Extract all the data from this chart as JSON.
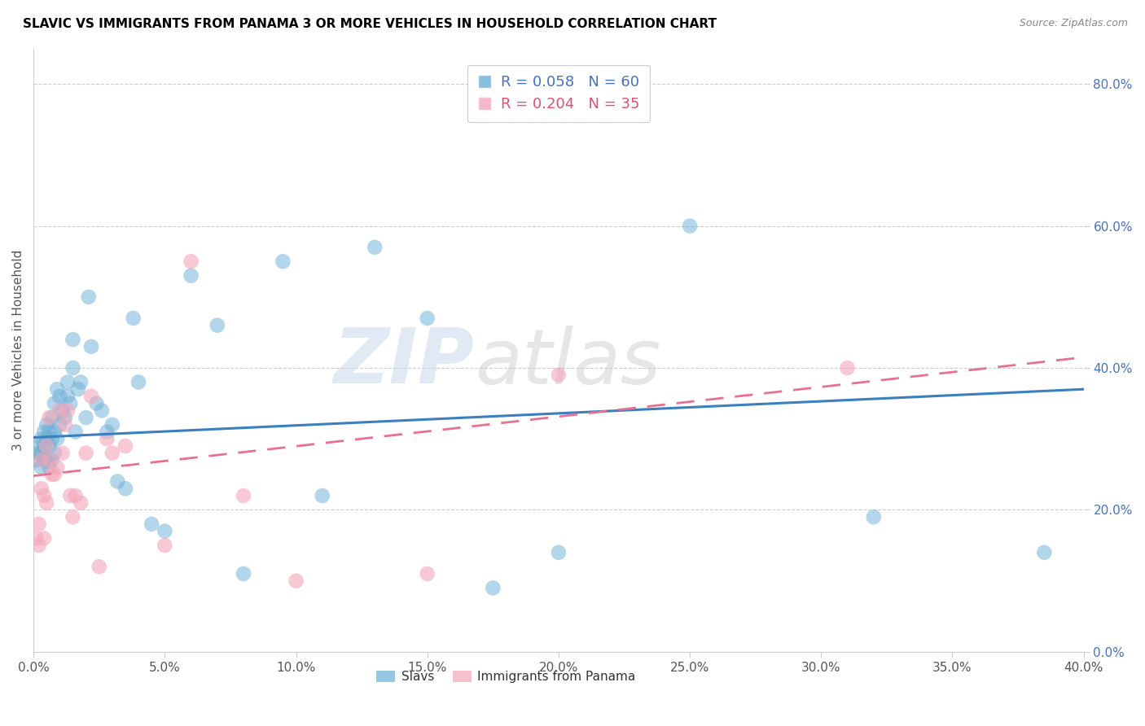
{
  "title": "SLAVIC VS IMMIGRANTS FROM PANAMA 3 OR MORE VEHICLES IN HOUSEHOLD CORRELATION CHART",
  "source": "Source: ZipAtlas.com",
  "ylabel": "3 or more Vehicles in Household",
  "xlim": [
    0.0,
    0.4
  ],
  "ylim": [
    0.0,
    0.85
  ],
  "xticks": [
    0.0,
    0.05,
    0.1,
    0.15,
    0.2,
    0.25,
    0.3,
    0.35,
    0.4
  ],
  "yticks": [
    0.0,
    0.2,
    0.4,
    0.6,
    0.8
  ],
  "ytick_labels_right": [
    "0.0%",
    "20.0%",
    "40.0%",
    "60.0%",
    "80.0%"
  ],
  "xtick_labels": [
    "0.0%",
    "5.0%",
    "10.0%",
    "15.0%",
    "20.0%",
    "25.0%",
    "30.0%",
    "35.0%",
    "40.0%"
  ],
  "legend1_label": "Slavs",
  "legend2_label": "Immigrants from Panama",
  "R_slavs": 0.058,
  "N_slavs": 60,
  "R_panama": 0.204,
  "N_panama": 35,
  "color_slavs": "#6baed6",
  "color_panama": "#f4a6b8",
  "watermark_zip": "ZIP",
  "watermark_atlas": "atlas",
  "slavs_x": [
    0.001,
    0.002,
    0.002,
    0.003,
    0.003,
    0.003,
    0.004,
    0.004,
    0.004,
    0.005,
    0.005,
    0.005,
    0.006,
    0.006,
    0.006,
    0.007,
    0.007,
    0.007,
    0.008,
    0.008,
    0.008,
    0.009,
    0.009,
    0.01,
    0.01,
    0.011,
    0.012,
    0.013,
    0.013,
    0.014,
    0.015,
    0.015,
    0.016,
    0.017,
    0.018,
    0.02,
    0.021,
    0.022,
    0.024,
    0.026,
    0.028,
    0.03,
    0.032,
    0.035,
    0.038,
    0.04,
    0.045,
    0.05,
    0.06,
    0.07,
    0.08,
    0.095,
    0.11,
    0.13,
    0.15,
    0.175,
    0.2,
    0.25,
    0.32,
    0.385
  ],
  "slavs_y": [
    0.27,
    0.28,
    0.29,
    0.26,
    0.28,
    0.3,
    0.27,
    0.29,
    0.31,
    0.27,
    0.3,
    0.32,
    0.26,
    0.29,
    0.31,
    0.27,
    0.3,
    0.33,
    0.28,
    0.31,
    0.35,
    0.3,
    0.37,
    0.32,
    0.36,
    0.34,
    0.33,
    0.36,
    0.38,
    0.35,
    0.4,
    0.44,
    0.31,
    0.37,
    0.38,
    0.33,
    0.5,
    0.43,
    0.35,
    0.34,
    0.31,
    0.32,
    0.24,
    0.23,
    0.47,
    0.38,
    0.18,
    0.17,
    0.53,
    0.46,
    0.11,
    0.55,
    0.22,
    0.57,
    0.47,
    0.09,
    0.14,
    0.6,
    0.19,
    0.14
  ],
  "panama_x": [
    0.001,
    0.002,
    0.002,
    0.003,
    0.003,
    0.004,
    0.004,
    0.005,
    0.005,
    0.006,
    0.006,
    0.007,
    0.008,
    0.009,
    0.01,
    0.011,
    0.012,
    0.013,
    0.014,
    0.015,
    0.016,
    0.018,
    0.02,
    0.022,
    0.025,
    0.028,
    0.03,
    0.035,
    0.05,
    0.06,
    0.08,
    0.1,
    0.15,
    0.2,
    0.31
  ],
  "panama_y": [
    0.16,
    0.15,
    0.18,
    0.23,
    0.27,
    0.16,
    0.22,
    0.21,
    0.29,
    0.33,
    0.27,
    0.25,
    0.25,
    0.26,
    0.34,
    0.28,
    0.32,
    0.34,
    0.22,
    0.19,
    0.22,
    0.21,
    0.28,
    0.36,
    0.12,
    0.3,
    0.28,
    0.29,
    0.15,
    0.55,
    0.22,
    0.1,
    0.11,
    0.39,
    0.4
  ],
  "slavs_trendline_y0": 0.302,
  "slavs_trendline_y1": 0.37,
  "panama_trendline_y0": 0.248,
  "panama_trendline_y1": 0.415
}
